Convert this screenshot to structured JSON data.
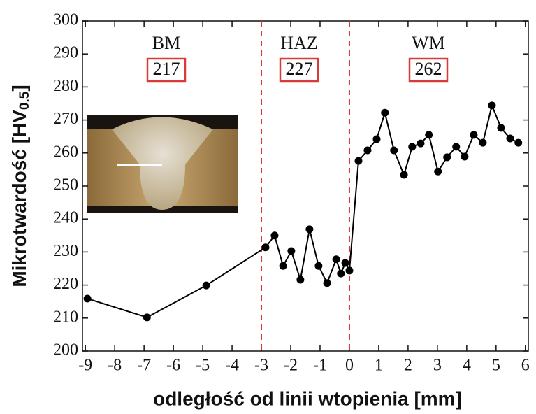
{
  "chart_data": {
    "type": "line",
    "xlabel": "odległość od linii wtopienia [mm]",
    "ylabel": [
      "Mikrotwardość [HV",
      "0.5",
      "]"
    ],
    "x": [
      -8.93,
      -6.9,
      -4.88,
      -2.86,
      -2.55,
      -2.26,
      -1.98,
      -1.67,
      -1.36,
      -1.05,
      -0.76,
      -0.45,
      -0.29,
      -0.14,
      0.0,
      0.31,
      0.62,
      0.93,
      1.21,
      1.52,
      1.86,
      2.14,
      2.43,
      2.71,
      3.02,
      3.33,
      3.64,
      3.93,
      4.24,
      4.55,
      4.86,
      5.17,
      5.48,
      5.76
    ],
    "series": [
      {
        "color": "#000000",
        "values": [
          215.9,
          210.2,
          219.9,
          231.4,
          235.0,
          225.8,
          230.3,
          221.6,
          236.9,
          225.8,
          220.6,
          227.8,
          223.5,
          226.7,
          224.4,
          257.6,
          260.8,
          264.2,
          272.2,
          260.8,
          253.4,
          261.9,
          262.9,
          265.5,
          254.4,
          258.7,
          261.9,
          258.9,
          265.5,
          263.1,
          274.4,
          267.6,
          264.4,
          263.1
        ]
      }
    ],
    "xlim": [
      -9.1,
      6.1
    ],
    "ylim": [
      200,
      300
    ],
    "xticks": [
      -9,
      -8,
      -7,
      -6,
      -5,
      -4,
      -3,
      -2,
      -1,
      0,
      1,
      2,
      3,
      4,
      5,
      6
    ],
    "yticks": [
      200,
      210,
      220,
      230,
      240,
      250,
      260,
      270,
      280,
      290,
      300
    ],
    "vlines": [
      -3,
      0
    ],
    "vline_color": "#d93a3a",
    "zones": [
      {
        "label": "BM",
        "value": 217
      },
      {
        "label": "HAZ",
        "value": 227
      },
      {
        "label": "WM",
        "value": 262
      }
    ]
  }
}
